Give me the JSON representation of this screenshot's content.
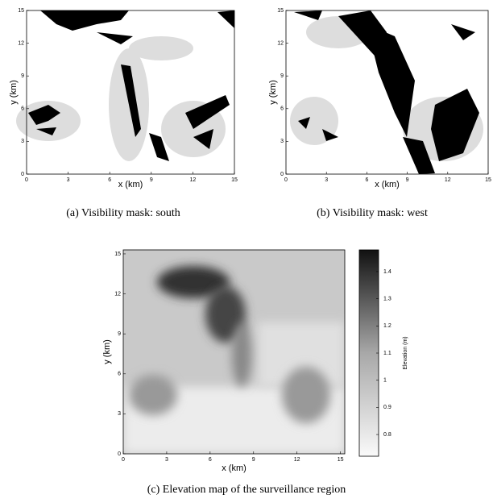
{
  "chart_data": [
    {
      "type": "heatmap",
      "caption": "(a) Visibility mask: south",
      "xlabel": "x (km)",
      "ylabel": "y (km)",
      "xlim": [
        0,
        15
      ],
      "ylim": [
        0,
        15
      ],
      "xticks": [
        0,
        3,
        6,
        9,
        12,
        15
      ],
      "yticks": [
        0,
        3,
        6,
        9,
        12,
        15
      ]
    },
    {
      "type": "heatmap",
      "caption": "(b) Visibility mask: west",
      "xlabel": "x (km)",
      "ylabel": "y (km)",
      "xlim": [
        0,
        15
      ],
      "ylim": [
        0,
        15
      ],
      "xticks": [
        0,
        3,
        6,
        9,
        12,
        15
      ],
      "yticks": [
        0,
        3,
        6,
        9,
        12,
        15
      ]
    },
    {
      "type": "heatmap",
      "caption": "(c) Elevation map of the surveillance region",
      "xlabel": "x (km)",
      "ylabel": "y (km)",
      "xlim": [
        0,
        15.3
      ],
      "ylim": [
        0,
        15.3
      ],
      "xticks": [
        0,
        3,
        6,
        9,
        12,
        15
      ],
      "yticks": [
        0,
        3,
        6,
        9,
        12,
        15
      ],
      "colorbar": {
        "label": "Elevation (m)",
        "lim": [
          0.72,
          1.48
        ],
        "ticks": [
          0.8,
          0.9,
          1,
          1.1,
          1.2,
          1.3,
          1.4
        ]
      }
    }
  ]
}
